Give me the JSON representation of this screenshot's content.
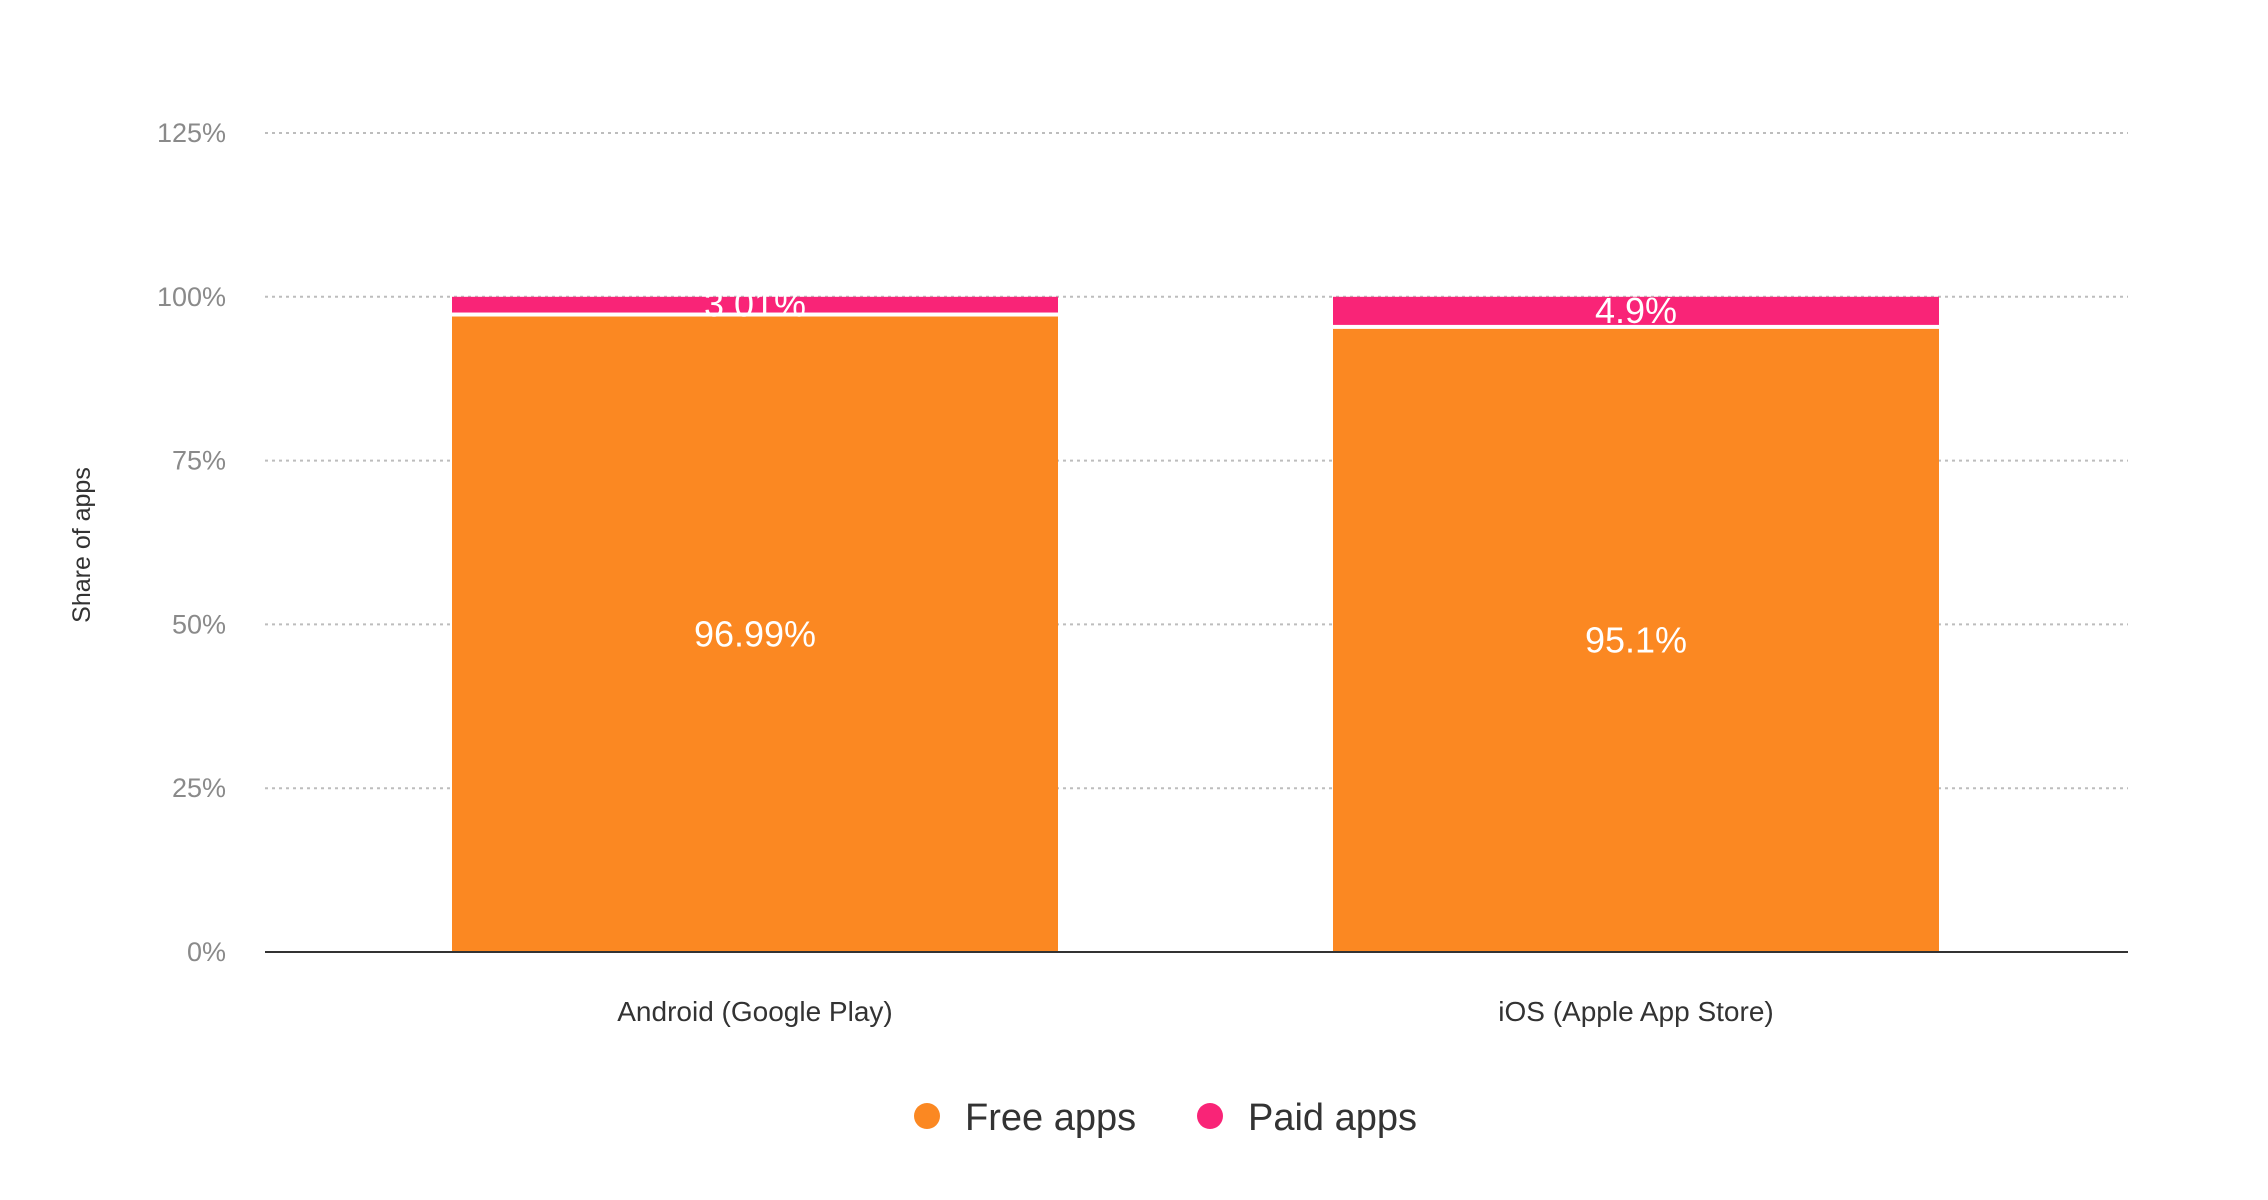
{
  "chart_data": {
    "type": "bar",
    "stacked": true,
    "categories": [
      "Android (Google Play)",
      "iOS (Apple App Store)"
    ],
    "series": [
      {
        "name": "Free apps",
        "values": [
          96.99,
          95.1
        ],
        "labels": [
          "96.99%",
          "95.1%"
        ],
        "color": "#fb8822"
      },
      {
        "name": "Paid apps",
        "values": [
          3.01,
          4.9
        ],
        "labels": [
          "3.01%",
          "4.9%"
        ],
        "color": "#f92477"
      }
    ],
    "xlabel": "",
    "ylabel": "Share of apps",
    "ylim": [
      0,
      125
    ],
    "yticks": [
      0,
      25,
      50,
      75,
      100,
      125
    ],
    "ytick_labels": [
      "0%",
      "25%",
      "50%",
      "75%",
      "100%",
      "125%"
    ],
    "grid": true,
    "legend": "bottom-center"
  }
}
